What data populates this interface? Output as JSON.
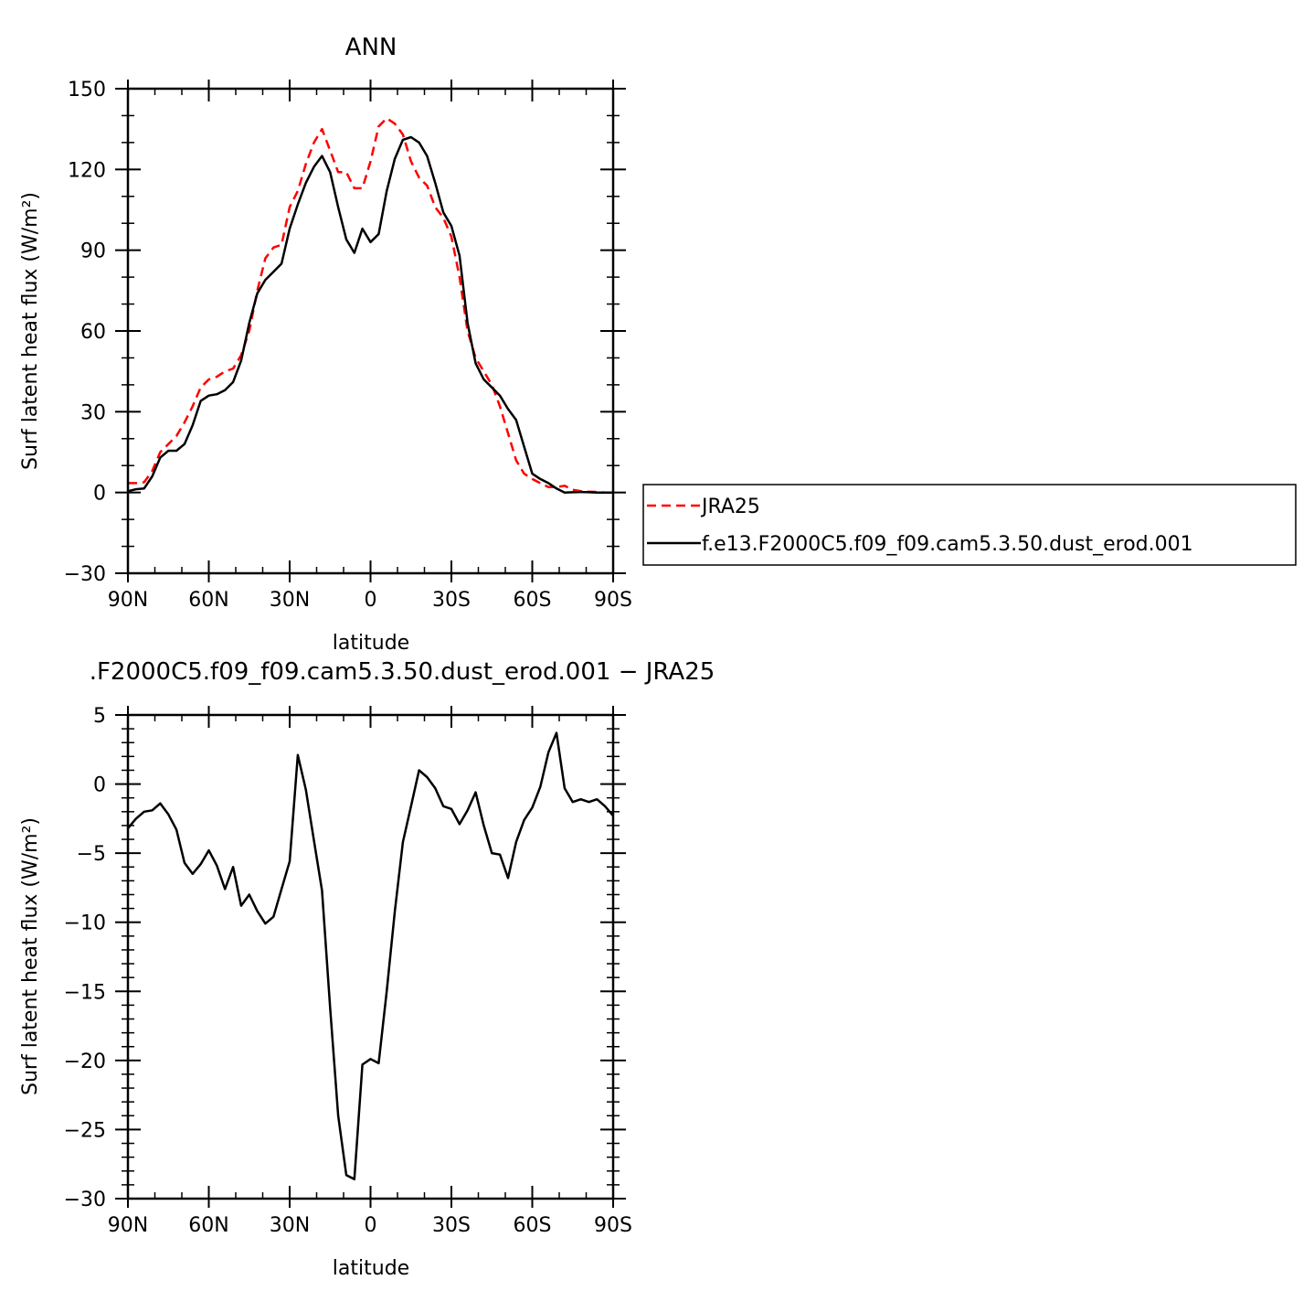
{
  "chart_data": [
    {
      "type": "line",
      "title": "ANN",
      "xlabel": "latitude",
      "ylabel": "Surf latent heat flux (W/m²)",
      "xlim": [
        90,
        -90
      ],
      "ylim": [
        -30,
        150
      ],
      "xticks": [
        90,
        60,
        30,
        0,
        -30,
        -60,
        -90
      ],
      "xtick_labels": [
        "90N",
        "60N",
        "30N",
        "0",
        "30S",
        "60S",
        "90S"
      ],
      "yticks": [
        -30,
        0,
        30,
        60,
        90,
        120,
        150
      ],
      "ytick_labels": [
        "−30",
        "0",
        "30",
        "60",
        "90",
        "120",
        "150"
      ],
      "grid": false,
      "legend_position": "right",
      "series": [
        {
          "name": "JRA25",
          "color": "#ff0000",
          "dash": "dashed",
          "x": [
            90,
            87,
            84,
            81,
            78,
            75,
            72,
            69,
            66,
            63,
            60,
            57,
            54,
            51,
            48,
            45,
            42,
            39,
            36,
            33,
            30,
            27,
            24,
            21,
            18,
            15,
            12,
            9,
            6,
            3,
            0,
            -3,
            -6,
            -9,
            -12,
            -15,
            -18,
            -21,
            -24,
            -27,
            -30,
            -33,
            -36,
            -39,
            -42,
            -45,
            -48,
            -51,
            -54,
            -57,
            -60,
            -63,
            -66,
            -69,
            -72,
            -75,
            -78,
            -81,
            -84,
            -87,
            -90
          ],
          "y": [
            3.5,
            3.5,
            3.8,
            8,
            15,
            18,
            21,
            26,
            32,
            39,
            42,
            43,
            45,
            46,
            51,
            60,
            75,
            87,
            91,
            92,
            106,
            112,
            122,
            130,
            135,
            127,
            119,
            119,
            113,
            113,
            123,
            136,
            139,
            137,
            133,
            123,
            117,
            114,
            106,
            102,
            95,
            80,
            60,
            50,
            45,
            40,
            32,
            22,
            12,
            7,
            5,
            3.5,
            2,
            2,
            2.5,
            1,
            0.5,
            0.3,
            0.2,
            0,
            0
          ]
        },
        {
          "name": "f.e13.F2000C5.f09_f09.cam5.3.50.dust_erod.001",
          "color": "#000000",
          "dash": "solid",
          "x": [
            90,
            87,
            84,
            81,
            78,
            75,
            72,
            69,
            66,
            63,
            60,
            57,
            54,
            51,
            48,
            45,
            42,
            39,
            36,
            33,
            30,
            27,
            24,
            21,
            18,
            15,
            12,
            9,
            6,
            3,
            0,
            -3,
            -6,
            -9,
            -12,
            -15,
            -18,
            -21,
            -24,
            -27,
            -30,
            -33,
            -36,
            -39,
            -42,
            -45,
            -48,
            -51,
            -54,
            -57,
            -60,
            -63,
            -66,
            -69,
            -72,
            -75,
            -78,
            -81,
            -84,
            -87,
            -90
          ],
          "y": [
            0.5,
            1.2,
            1.5,
            6,
            13,
            15.5,
            15.5,
            18,
            25,
            34,
            36,
            36.5,
            38,
            41,
            49,
            63,
            74,
            79,
            82,
            85,
            98,
            107,
            115,
            121,
            125,
            119,
            106,
            94,
            89,
            98,
            93,
            96,
            112,
            124,
            131,
            132,
            130,
            125,
            115,
            104,
            99,
            88,
            63,
            48,
            42,
            39,
            36,
            31,
            27,
            17,
            7,
            5,
            3.5,
            1.5,
            0,
            0.1,
            0.2,
            0.1,
            0,
            0,
            0
          ]
        }
      ]
    },
    {
      "type": "line",
      "title": ".F2000C5.f09_f09.cam5.3.50.dust_erod.001 − JRA25",
      "xlabel": "latitude",
      "ylabel": "Surf latent heat flux (W/m²)",
      "xlim": [
        90,
        -90
      ],
      "ylim": [
        -30,
        5
      ],
      "xticks": [
        90,
        60,
        30,
        0,
        -30,
        -60,
        -90
      ],
      "xtick_labels": [
        "90N",
        "60N",
        "30N",
        "0",
        "30S",
        "60S",
        "90S"
      ],
      "yticks": [
        -30,
        -25,
        -20,
        -15,
        -10,
        -5,
        0,
        5
      ],
      "ytick_labels": [
        "−30",
        "−25",
        "−20",
        "−15",
        "−10",
        "−5",
        "0",
        "5"
      ],
      "grid": false,
      "series": [
        {
          "color": "#000000",
          "dash": "solid",
          "x": [
            90,
            87,
            84,
            81,
            78,
            75,
            72,
            69,
            66,
            63,
            60,
            57,
            54,
            51,
            48,
            45,
            42,
            39,
            36,
            33,
            30,
            27,
            24,
            21,
            18,
            15,
            12,
            9,
            6,
            3,
            0,
            -3,
            -6,
            -9,
            -12,
            -15,
            -18,
            -21,
            -24,
            -27,
            -30,
            -33,
            -36,
            -39,
            -42,
            -45,
            -48,
            -51,
            -54,
            -57,
            -60,
            -63,
            -66,
            -69,
            -72,
            -75,
            -78,
            -81,
            -84,
            -87,
            -90
          ],
          "y": [
            -3.2,
            -2.5,
            -2.0,
            -1.9,
            -1.4,
            -2.2,
            -3.3,
            -5.7,
            -6.5,
            -5.8,
            -4.8,
            -5.9,
            -7.6,
            -6.0,
            -8.8,
            -8.0,
            -9.2,
            -10.1,
            -9.6,
            -7.6,
            -5.6,
            2.1,
            -0.4,
            -4.1,
            -7.7,
            -16.2,
            -24.0,
            -28.3,
            -28.6,
            -20.3,
            -19.9,
            -20.2,
            -15.0,
            -9.2,
            -4.2,
            -1.6,
            1.0,
            0.5,
            -0.3,
            -1.6,
            -1.8,
            -2.9,
            -1.9,
            -0.6,
            -3.0,
            -5.0,
            -5.1,
            -6.8,
            -4.2,
            -2.6,
            -1.7,
            -0.2,
            2.3,
            3.7,
            -0.3,
            -1.3,
            -1.1,
            -1.3,
            -1.1,
            -1.6,
            -2.3
          ]
        }
      ]
    }
  ]
}
